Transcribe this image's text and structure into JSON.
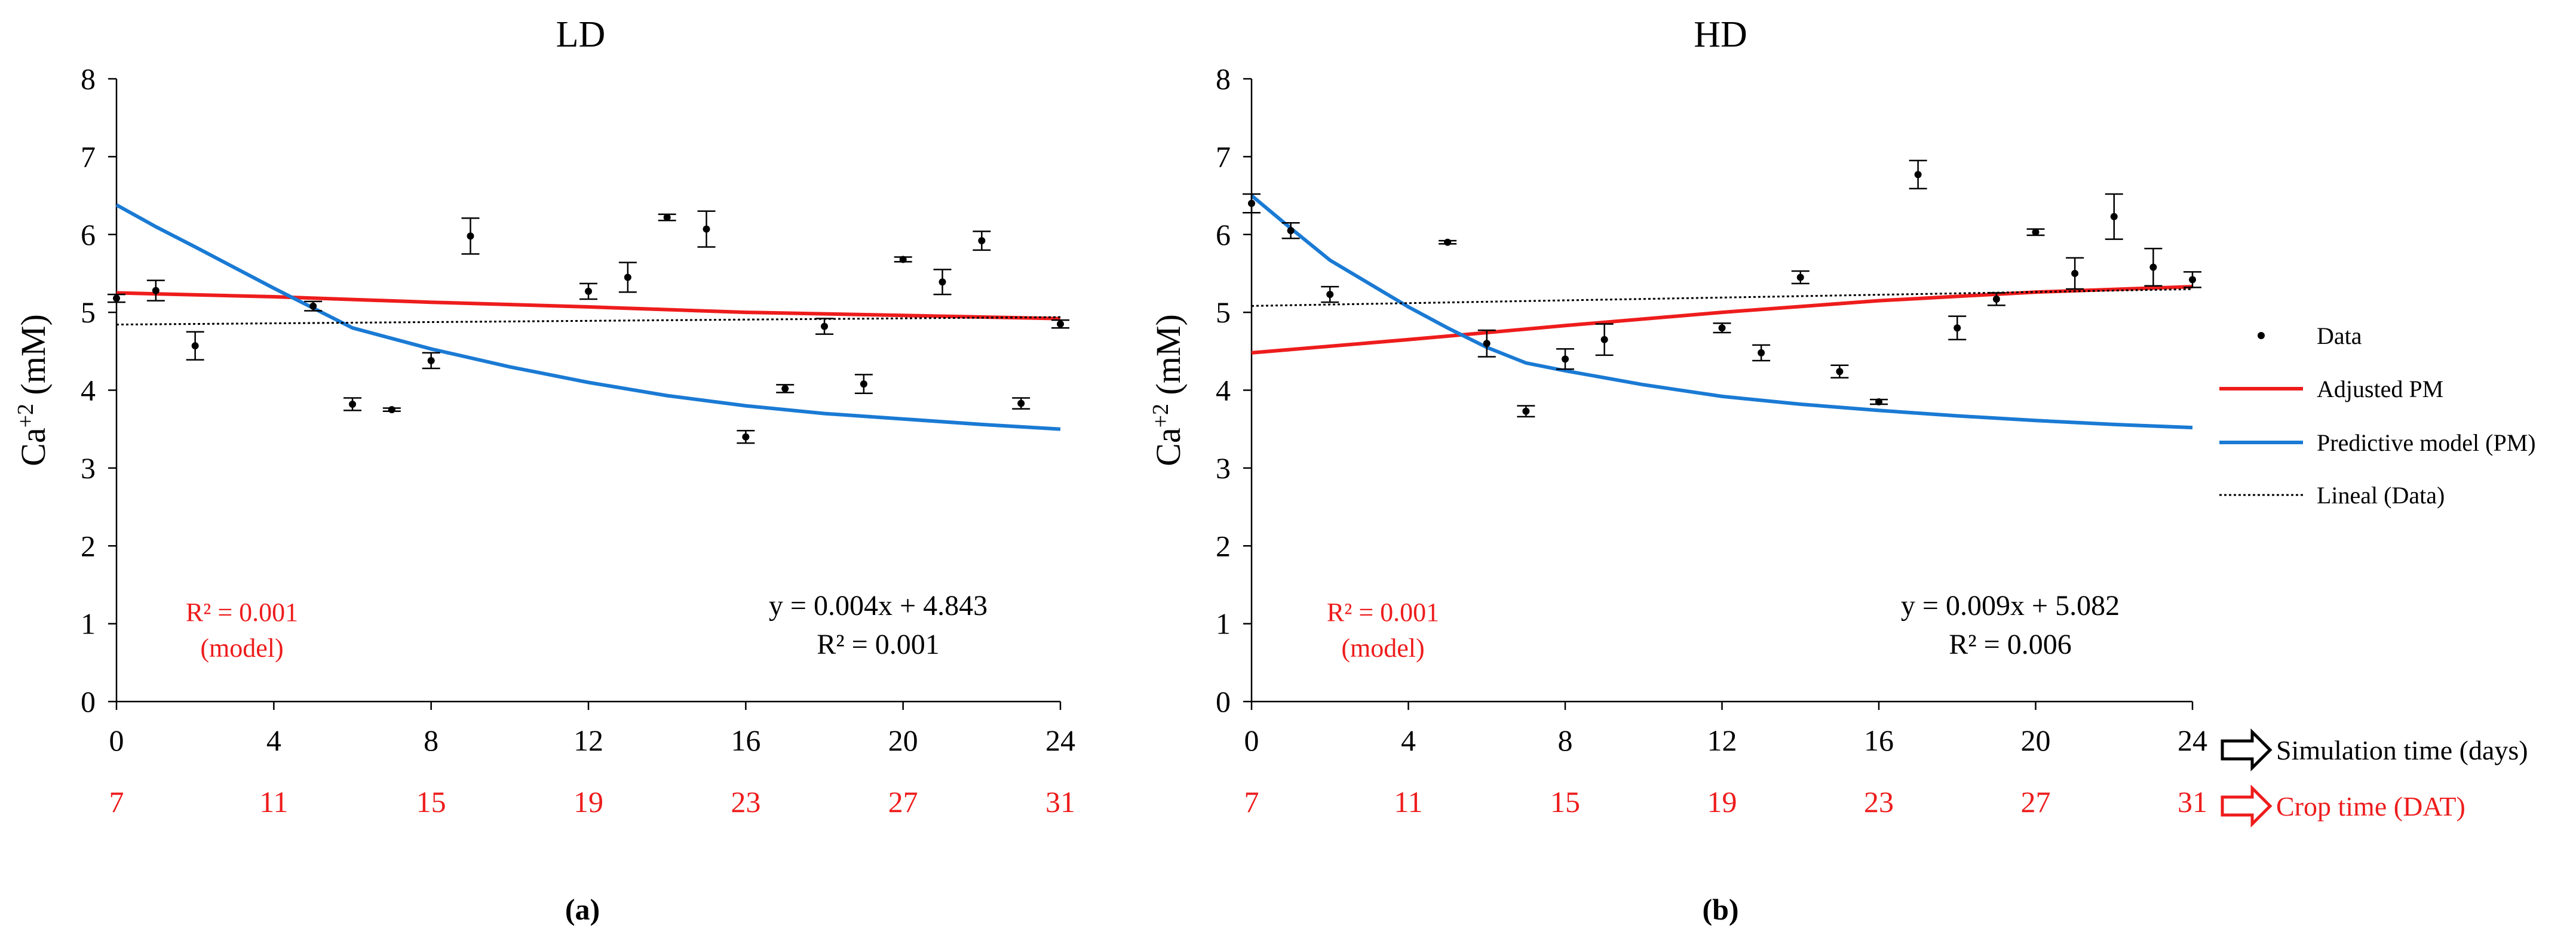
{
  "figure": {
    "sublabels": [
      "(a)",
      "(b)"
    ],
    "simulation_label": "Simulation time (days)",
    "crop_label": "Crop time (DAT)",
    "colors": {
      "adjusted": "#ee1c1c",
      "predictive": "#1a7ad4",
      "lineal": "#000000",
      "data": "#000000",
      "crop_ticks": "#ee1c1c"
    }
  },
  "legend": {
    "items": [
      {
        "label": "Data",
        "style": "point"
      },
      {
        "label": "Adjusted PM",
        "style": "adjusted"
      },
      {
        "label": "Predictive model (PM)",
        "style": "predictive"
      },
      {
        "label": "Lineal (Data)",
        "style": "lineal"
      }
    ]
  },
  "chart_data": [
    {
      "type": "scatter",
      "title": "LD",
      "ylabel_main": "Ca",
      "ylabel_sup": "+2",
      "ylabel_unit": " (mM)",
      "xlim": [
        0,
        24
      ],
      "ylim": [
        0,
        8
      ],
      "xticks": [
        "0",
        "4",
        "8",
        "12",
        "16",
        "20",
        "24"
      ],
      "yticks": [
        "0",
        "1",
        "2",
        "3",
        "4",
        "5",
        "6",
        "7",
        "8"
      ],
      "crop_ticks": [
        "7",
        "11",
        "15",
        "19",
        "23",
        "27",
        "31"
      ],
      "equation": "y = 0.004x + 4.843",
      "r2_data": "R² = 0.001",
      "r2_model": "R² = 0.001",
      "r2_model_note": "(model)",
      "data_points": [
        {
          "x": 0,
          "y": 5.18,
          "err": 0.05
        },
        {
          "x": 1,
          "y": 5.28,
          "err": 0.13
        },
        {
          "x": 2,
          "y": 4.57,
          "err": 0.18
        },
        {
          "x": 5,
          "y": 5.08,
          "err": 0.06
        },
        {
          "x": 6,
          "y": 3.82,
          "err": 0.08
        },
        {
          "x": 7,
          "y": 3.75,
          "err": 0.02
        },
        {
          "x": 8,
          "y": 4.38,
          "err": 0.1
        },
        {
          "x": 9,
          "y": 5.98,
          "err": 0.23
        },
        {
          "x": 12,
          "y": 5.27,
          "err": 0.1
        },
        {
          "x": 13,
          "y": 5.45,
          "err": 0.19
        },
        {
          "x": 14,
          "y": 6.22,
          "err": 0.04
        },
        {
          "x": 15,
          "y": 6.07,
          "err": 0.23
        },
        {
          "x": 16,
          "y": 3.4,
          "err": 0.08
        },
        {
          "x": 17,
          "y": 4.02,
          "err": 0.05
        },
        {
          "x": 18,
          "y": 4.82,
          "err": 0.1
        },
        {
          "x": 19,
          "y": 4.08,
          "err": 0.12
        },
        {
          "x": 20,
          "y": 5.68,
          "err": 0.03
        },
        {
          "x": 21,
          "y": 5.39,
          "err": 0.16
        },
        {
          "x": 22,
          "y": 5.92,
          "err": 0.12
        },
        {
          "x": 23,
          "y": 3.83,
          "err": 0.07
        },
        {
          "x": 24,
          "y": 4.85,
          "err": 0.05
        }
      ],
      "series": [
        {
          "name": "Adjusted PM",
          "style": "adjusted",
          "x": [
            0,
            4,
            8,
            12,
            16,
            20,
            24
          ],
          "y": [
            5.25,
            5.2,
            5.13,
            5.07,
            5.0,
            4.96,
            4.92
          ]
        },
        {
          "name": "Predictive model (PM)",
          "style": "predictive",
          "x": [
            0,
            1,
            2,
            4,
            6,
            8,
            10,
            12,
            14,
            16,
            18,
            20,
            22,
            24
          ],
          "y": [
            6.38,
            6.1,
            5.84,
            5.31,
            4.8,
            4.53,
            4.3,
            4.1,
            3.93,
            3.8,
            3.7,
            3.63,
            3.56,
            3.5
          ]
        },
        {
          "name": "Lineal (Data)",
          "style": "lineal",
          "x": [
            0,
            24
          ],
          "y": [
            4.843,
            4.939
          ]
        }
      ]
    },
    {
      "type": "scatter",
      "title": "HD",
      "ylabel_main": "Ca",
      "ylabel_sup": "+2",
      "ylabel_unit": " (mM)",
      "xlim": [
        0,
        24
      ],
      "ylim": [
        0,
        8
      ],
      "xticks": [
        "0",
        "4",
        "8",
        "12",
        "16",
        "20",
        "24"
      ],
      "yticks": [
        "0",
        "1",
        "2",
        "3",
        "4",
        "5",
        "6",
        "7",
        "8"
      ],
      "crop_ticks": [
        "7",
        "11",
        "15",
        "19",
        "23",
        "27",
        "31"
      ],
      "equation": "y = 0.009x + 5.082",
      "r2_data": "R² = 0.006",
      "r2_model": "R² = 0.001",
      "r2_model_note": "(model)",
      "data_points": [
        {
          "x": 0,
          "y": 6.4,
          "err": 0.12
        },
        {
          "x": 1,
          "y": 6.05,
          "err": 0.1
        },
        {
          "x": 2,
          "y": 5.23,
          "err": 0.1
        },
        {
          "x": 5,
          "y": 5.9,
          "err": 0.02
        },
        {
          "x": 6,
          "y": 4.6,
          "err": 0.17
        },
        {
          "x": 7,
          "y": 3.73,
          "err": 0.07
        },
        {
          "x": 8,
          "y": 4.4,
          "err": 0.13
        },
        {
          "x": 9,
          "y": 4.65,
          "err": 0.2
        },
        {
          "x": 12,
          "y": 4.8,
          "err": 0.06
        },
        {
          "x": 13,
          "y": 4.48,
          "err": 0.1
        },
        {
          "x": 14,
          "y": 5.45,
          "err": 0.08
        },
        {
          "x": 15,
          "y": 4.24,
          "err": 0.08
        },
        {
          "x": 16,
          "y": 3.85,
          "err": 0.03
        },
        {
          "x": 17,
          "y": 6.77,
          "err": 0.18
        },
        {
          "x": 18,
          "y": 4.8,
          "err": 0.15
        },
        {
          "x": 19,
          "y": 5.17,
          "err": 0.08
        },
        {
          "x": 20,
          "y": 6.03,
          "err": 0.04
        },
        {
          "x": 21,
          "y": 5.5,
          "err": 0.2
        },
        {
          "x": 22,
          "y": 6.23,
          "err": 0.29
        },
        {
          "x": 23,
          "y": 5.58,
          "err": 0.24
        },
        {
          "x": 24,
          "y": 5.42,
          "err": 0.1
        }
      ],
      "series": [
        {
          "name": "Adjusted PM",
          "style": "adjusted",
          "x": [
            0,
            4,
            8,
            12,
            16,
            20,
            24
          ],
          "y": [
            4.48,
            4.65,
            4.83,
            5.0,
            5.15,
            5.26,
            5.33
          ]
        },
        {
          "name": "Predictive model (PM)",
          "style": "predictive",
          "x": [
            0,
            1,
            2,
            4,
            5,
            6,
            7,
            8,
            10,
            12,
            14,
            16,
            18,
            20,
            22,
            24
          ],
          "y": [
            6.5,
            6.08,
            5.67,
            5.07,
            4.8,
            4.55,
            4.35,
            4.25,
            4.07,
            3.92,
            3.82,
            3.74,
            3.67,
            3.61,
            3.56,
            3.52
          ]
        },
        {
          "name": "Lineal (Data)",
          "style": "lineal",
          "x": [
            0,
            24
          ],
          "y": [
            5.082,
            5.298
          ]
        }
      ]
    }
  ]
}
